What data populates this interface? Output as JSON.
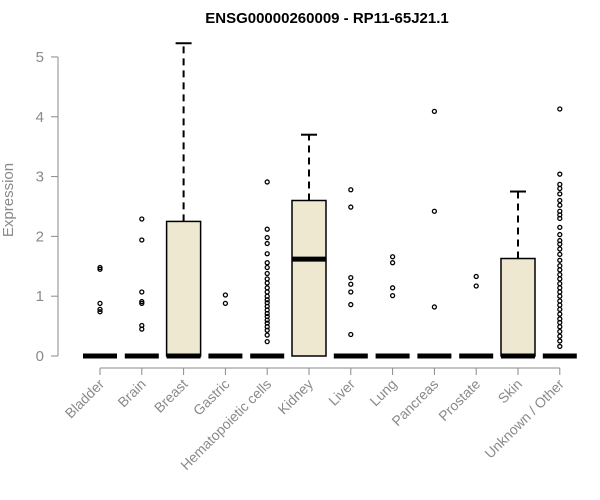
{
  "chart_data": {
    "type": "boxplot",
    "title": "ENSG00000260009 - RP11-65J21.1",
    "xlabel": "",
    "ylabel": "Expression",
    "ylim": [
      0,
      5.25
    ],
    "yticks": [
      0,
      1,
      2,
      3,
      4,
      5
    ],
    "grid": false,
    "box_fill": "#eee8d0",
    "categories": [
      "Bladder",
      "Brain",
      "Breast",
      "Gastric",
      "Hematopoietic cells",
      "Kidney",
      "Liver",
      "Lung",
      "Pancreas",
      "Prostate",
      "Skin",
      "Unknown / Other"
    ],
    "boxes": [
      {
        "category": "Bladder",
        "min": 0,
        "q1": 0,
        "median": 0,
        "q3": 0,
        "max": 0,
        "outliers": [
          1.48,
          1.45,
          0.88,
          0.78,
          0.74
        ]
      },
      {
        "category": "Brain",
        "min": 0,
        "q1": 0,
        "median": 0,
        "q3": 0,
        "max": 0,
        "outliers": [
          2.29,
          1.94,
          1.07,
          0.91,
          0.88,
          0.51,
          0.45
        ]
      },
      {
        "category": "Breast",
        "min": 0,
        "q1": 0,
        "median": 0,
        "q3": 2.25,
        "max": 5.23,
        "outliers": []
      },
      {
        "category": "Gastric",
        "min": 0,
        "q1": 0,
        "median": 0,
        "q3": 0,
        "max": 0,
        "outliers": [
          1.02,
          0.88
        ]
      },
      {
        "category": "Hematopoietic cells",
        "min": 0,
        "q1": 0,
        "median": 0,
        "q3": 0,
        "max": 0,
        "outliers": [
          2.91,
          2.12,
          1.98,
          1.88,
          1.71,
          1.56,
          1.48,
          1.38,
          1.29,
          1.22,
          1.14,
          1.07,
          1.0,
          0.94,
          0.89,
          0.83,
          0.77,
          0.71,
          0.66,
          0.6,
          0.55,
          0.49,
          0.43,
          0.35,
          0.24
        ]
      },
      {
        "category": "Kidney",
        "min": 0,
        "q1": 0,
        "median": 1.62,
        "q3": 2.6,
        "max": 3.7,
        "outliers": []
      },
      {
        "category": "Liver",
        "min": 0,
        "q1": 0,
        "median": 0,
        "q3": 0,
        "max": 0,
        "outliers": [
          2.78,
          2.49,
          1.31,
          1.2,
          1.07,
          0.86,
          0.36
        ]
      },
      {
        "category": "Lung",
        "min": 0,
        "q1": 0,
        "median": 0,
        "q3": 0,
        "max": 0,
        "outliers": [
          1.66,
          1.56,
          1.14,
          1.01
        ]
      },
      {
        "category": "Pancreas",
        "min": 0,
        "q1": 0,
        "median": 0,
        "q3": 0,
        "max": 0,
        "outliers": [
          4.09,
          2.42,
          0.82
        ]
      },
      {
        "category": "Prostate",
        "min": 0,
        "q1": 0,
        "median": 0,
        "q3": 0,
        "max": 0,
        "outliers": [
          1.33,
          1.17
        ]
      },
      {
        "category": "Skin",
        "min": 0,
        "q1": 0,
        "median": 0,
        "q3": 1.63,
        "max": 2.75,
        "outliers": []
      },
      {
        "category": "Unknown / Other",
        "min": 0,
        "q1": 0,
        "median": 0,
        "q3": 0,
        "max": 0,
        "outliers": [
          4.13,
          3.04,
          2.87,
          2.8,
          2.71,
          2.6,
          2.52,
          2.42,
          2.36,
          2.3,
          2.15,
          2.03,
          1.93,
          1.87,
          1.79,
          1.7,
          1.6,
          1.51,
          1.44,
          1.36,
          1.29,
          1.21,
          1.14,
          1.07,
          1.0,
          0.92,
          0.85,
          0.78,
          0.7,
          0.62,
          0.56,
          0.49,
          0.41,
          0.33,
          0.25,
          0.16
        ]
      }
    ]
  }
}
